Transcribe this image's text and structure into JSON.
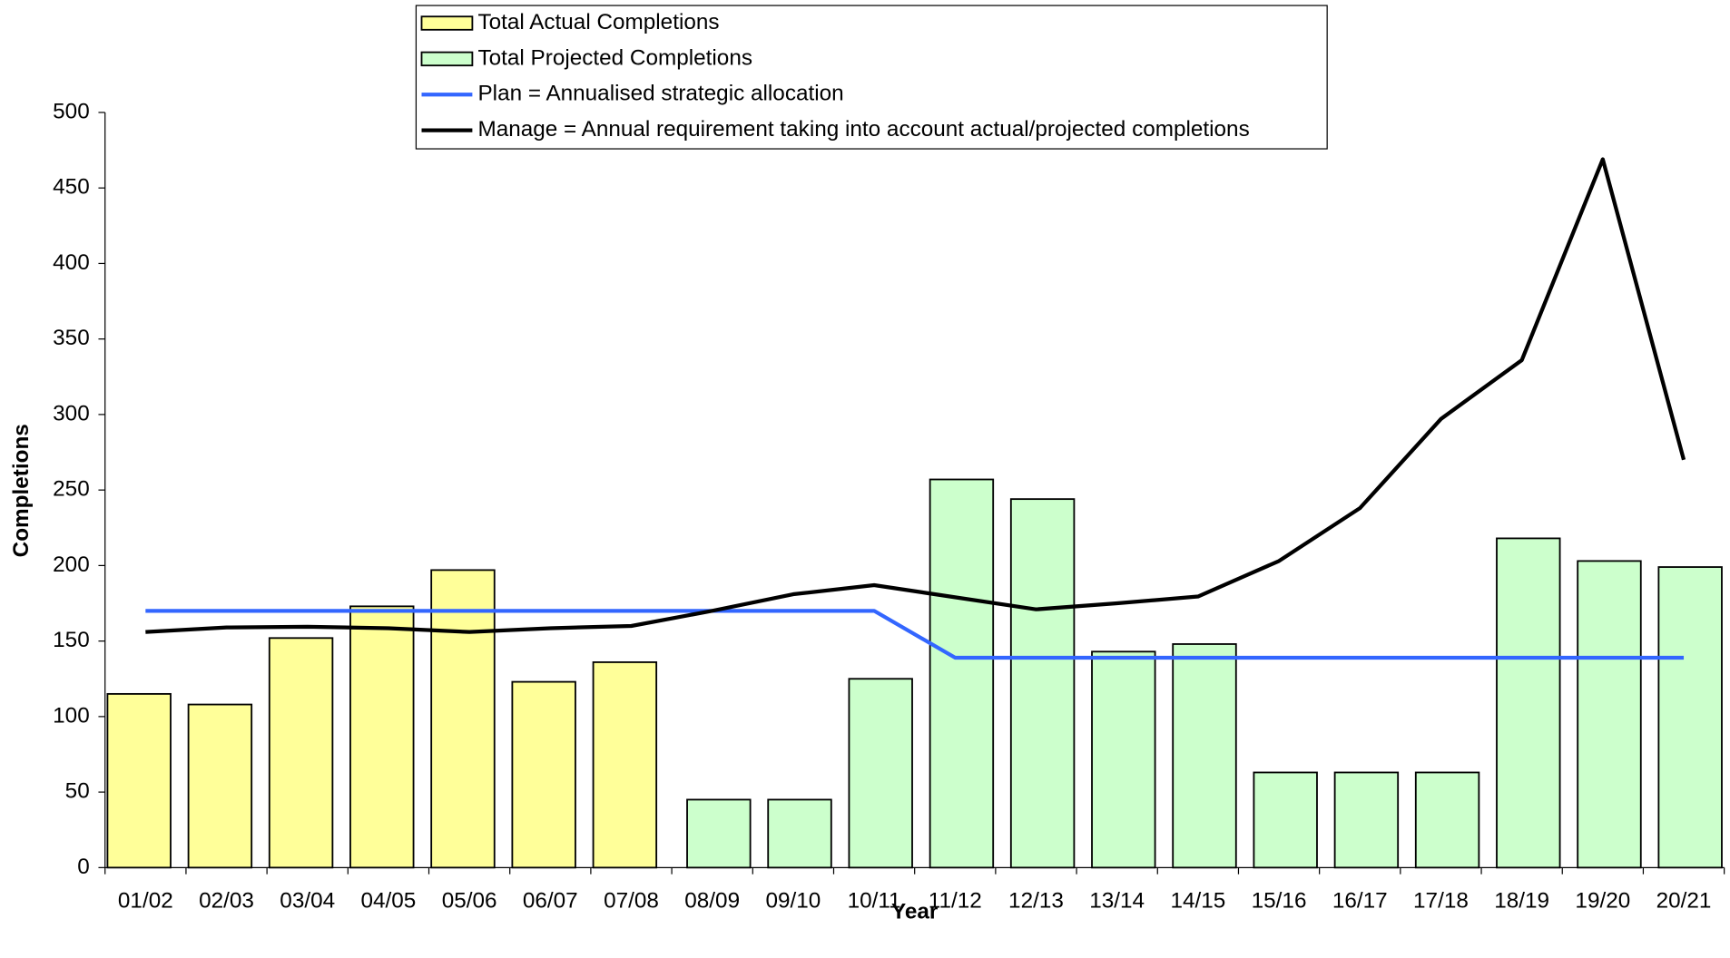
{
  "chart_data": {
    "type": "bar",
    "x_label": "Year",
    "y_label": "Completions",
    "categories": [
      "01/02",
      "02/03",
      "03/04",
      "04/05",
      "05/06",
      "06/07",
      "07/08",
      "08/09",
      "09/10",
      "10/11",
      "11/12",
      "12/13",
      "13/14",
      "14/15",
      "15/16",
      "16/17",
      "17/18",
      "18/19",
      "19/20",
      "20/21"
    ],
    "series": [
      {
        "name": "Total Actual Completions",
        "type": "bar",
        "color": "#ffff99",
        "values": [
          115,
          108,
          152,
          173,
          197,
          123,
          136,
          null,
          null,
          null,
          null,
          null,
          null,
          null,
          null,
          null,
          null,
          null,
          null,
          null
        ]
      },
      {
        "name": "Total Projected Completions",
        "type": "bar",
        "color": "#ccffcc",
        "values": [
          null,
          null,
          null,
          null,
          null,
          null,
          null,
          45,
          45,
          125,
          257,
          244,
          143,
          148,
          63,
          63,
          63,
          218,
          203,
          199
        ]
      },
      {
        "name": "Plan = Annualised strategic allocation",
        "type": "line",
        "color": "#3366ff",
        "values": [
          170,
          170,
          170,
          170,
          170,
          170,
          170,
          170,
          170,
          170,
          139,
          139,
          139,
          139,
          139,
          139,
          139,
          139,
          139,
          139
        ]
      },
      {
        "name": "Manage = Annual requirement taking into account actual/projected completions",
        "type": "line",
        "color": "#000000",
        "values": [
          156,
          159,
          159.5,
          158.5,
          156,
          158.5,
          160,
          170,
          181,
          187,
          179,
          171,
          175,
          179.5,
          203,
          238,
          297,
          336,
          469,
          270
        ]
      }
    ],
    "ylim": [
      0,
      500
    ],
    "yticks": [
      0,
      50,
      100,
      150,
      200,
      250,
      300,
      350,
      400,
      450,
      500
    ],
    "grid": false,
    "legend": "top"
  }
}
